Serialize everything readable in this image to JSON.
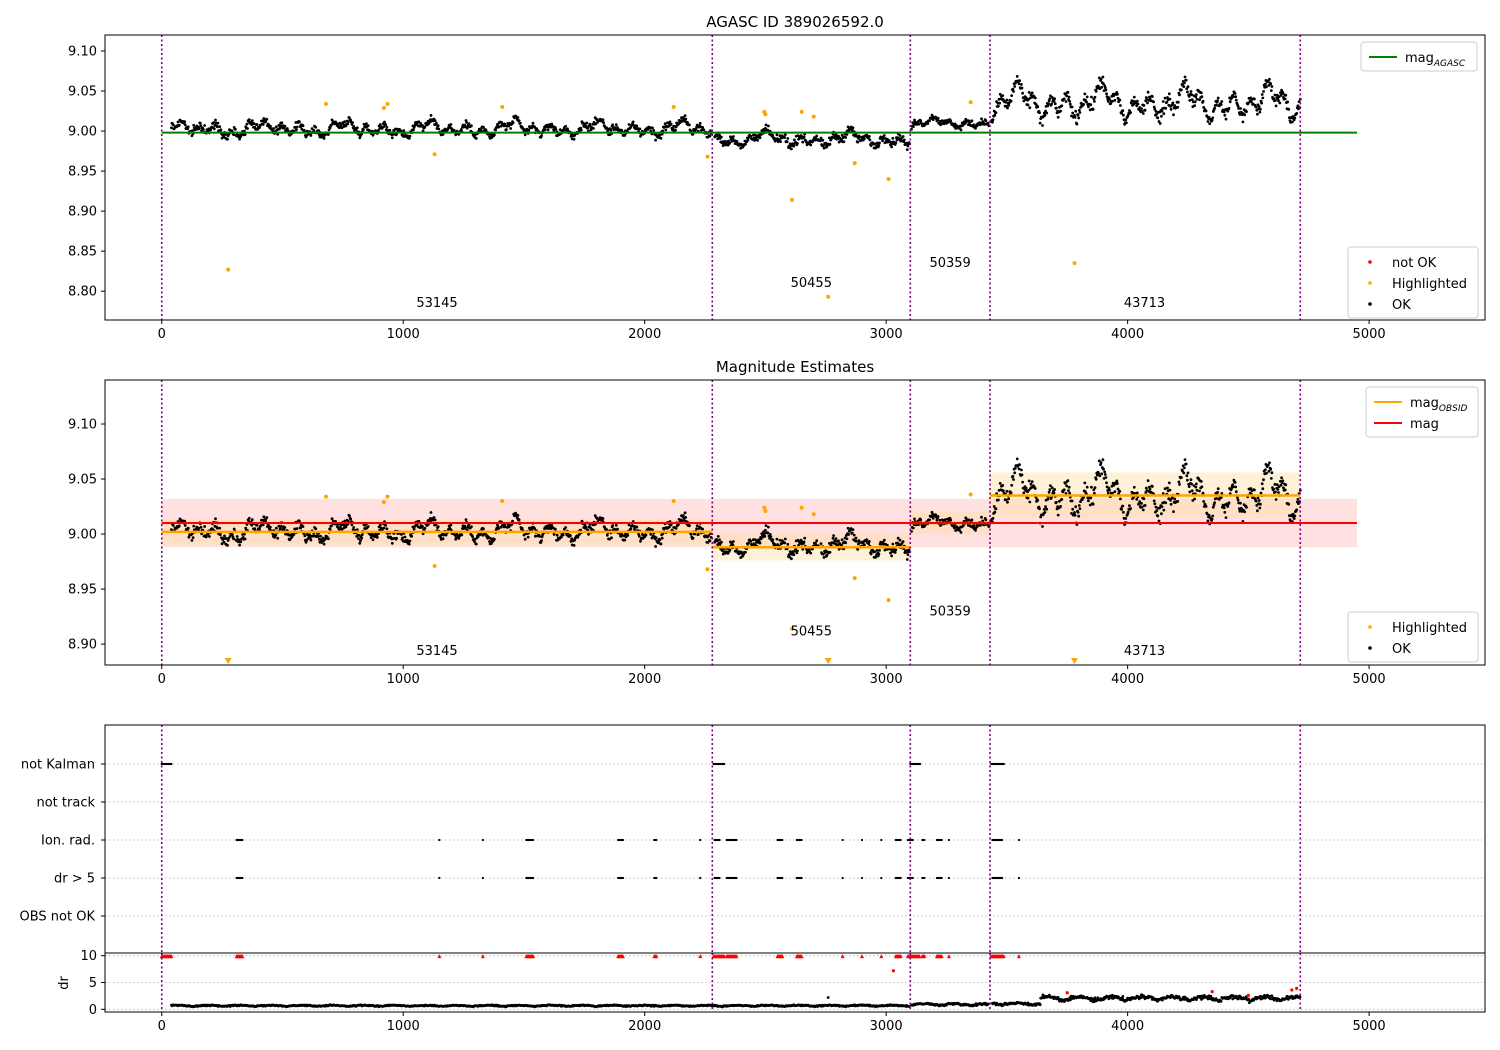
{
  "chart_data": [
    {
      "type": "scatter",
      "title": "AGASC ID 389026592.0",
      "xlim": [
        -235,
        5480
      ],
      "ylim": [
        8.764,
        9.12
      ],
      "xticks": [
        0,
        1000,
        2000,
        3000,
        4000,
        5000
      ],
      "yticks": [
        8.8,
        8.85,
        8.9,
        8.95,
        9.0,
        9.05,
        9.1
      ],
      "ytick_labels": [
        "8.80",
        "8.85",
        "8.90",
        "8.95",
        "9.00",
        "9.05",
        "9.10"
      ],
      "vlines": [
        0,
        2280,
        3100,
        3430,
        4715
      ],
      "obsid_labels": [
        {
          "text": "53145",
          "x": 1140,
          "y": 8.78
        },
        {
          "text": "50455",
          "x": 2690,
          "y": 8.805
        },
        {
          "text": "50359",
          "x": 3265,
          "y": 8.83
        },
        {
          "text": "43713",
          "x": 4070,
          "y": 8.78
        }
      ],
      "hlines": [
        {
          "name": "mag",
          "sub": "AGASC",
          "y": 8.998,
          "x0": 0,
          "x1": 4950,
          "color": "#008000"
        }
      ],
      "highlighted": [
        [
          275,
          8.827
        ],
        [
          680,
          9.034
        ],
        [
          920,
          9.029
        ],
        [
          935,
          9.034
        ],
        [
          1130,
          8.971
        ],
        [
          1410,
          9.03
        ],
        [
          2120,
          9.03
        ],
        [
          2260,
          8.968
        ],
        [
          2495,
          9.024
        ],
        [
          2500,
          9.021
        ],
        [
          2610,
          8.914
        ],
        [
          2650,
          9.024
        ],
        [
          2700,
          9.018
        ],
        [
          2760,
          8.793
        ],
        [
          2870,
          8.96
        ],
        [
          3010,
          8.94
        ],
        [
          3350,
          9.036
        ],
        [
          3780,
          8.835
        ]
      ],
      "segments": [
        {
          "x0": 40,
          "x1": 2275,
          "mean": 9.003,
          "amp": 0.008,
          "noise": 0.005
        },
        {
          "x0": 2290,
          "x1": 3095,
          "mean": 8.99,
          "amp": 0.008,
          "noise": 0.005
        },
        {
          "x0": 3105,
          "x1": 3425,
          "mean": 9.01,
          "amp": 0.005,
          "noise": 0.004
        },
        {
          "x0": 3435,
          "x1": 4715,
          "mean": 9.035,
          "amp": 0.018,
          "noise": 0.008
        }
      ],
      "legends": [
        {
          "position": "upper-right",
          "entries": [
            {
              "kind": "line",
              "label": "mag",
              "sub": "AGASC",
              "color": "#008000"
            }
          ]
        },
        {
          "position": "lower-right",
          "entries": [
            {
              "kind": "dot",
              "label": "not OK",
              "color": "#ff0000"
            },
            {
              "kind": "dot",
              "label": "Highlighted",
              "color": "#ffa500"
            },
            {
              "kind": "dot",
              "label": "OK",
              "color": "#000000"
            }
          ]
        }
      ]
    },
    {
      "type": "scatter",
      "title": "Magnitude Estimates",
      "xlim": [
        -235,
        5480
      ],
      "ylim": [
        8.881,
        9.14
      ],
      "xticks": [
        0,
        1000,
        2000,
        3000,
        4000,
        5000
      ],
      "yticks": [
        8.9,
        8.95,
        9.0,
        9.05,
        9.1
      ],
      "ytick_labels": [
        "8.90",
        "8.95",
        "9.00",
        "9.05",
        "9.10"
      ],
      "vlines": [
        0,
        2280,
        3100,
        3430,
        4715
      ],
      "obsid_labels": [
        {
          "text": "53145",
          "x": 1140,
          "y": 8.89
        },
        {
          "text": "50455",
          "x": 2690,
          "y": 8.908
        },
        {
          "text": "50359",
          "x": 3265,
          "y": 8.926
        },
        {
          "text": "43713",
          "x": 4070,
          "y": 8.89
        }
      ],
      "mag": {
        "y": 9.01,
        "band": [
          8.988,
          9.032
        ],
        "x0": 0,
        "x1": 4950,
        "color": "#ff0000",
        "band_color": "#ffd9d9"
      },
      "obsid_mags": [
        {
          "x0": 0,
          "x1": 2280,
          "y": 9.002,
          "band": [
            8.99,
            9.013
          ]
        },
        {
          "x0": 2280,
          "x1": 3100,
          "y": 8.988,
          "band": [
            8.976,
            9.0
          ]
        },
        {
          "x0": 3100,
          "x1": 3430,
          "y": 9.01,
          "band": [
            9.0,
            9.02
          ]
        },
        {
          "x0": 3430,
          "x1": 4715,
          "y": 9.035,
          "band": [
            9.015,
            9.056
          ]
        }
      ],
      "highlighted": [
        [
          680,
          9.034
        ],
        [
          920,
          9.029
        ],
        [
          935,
          9.034
        ],
        [
          1130,
          8.971
        ],
        [
          1410,
          9.03
        ],
        [
          2120,
          9.03
        ],
        [
          2260,
          8.968
        ],
        [
          2495,
          9.024
        ],
        [
          2500,
          9.021
        ],
        [
          2610,
          8.914
        ],
        [
          2650,
          9.024
        ],
        [
          2700,
          9.018
        ],
        [
          2870,
          8.96
        ],
        [
          3010,
          8.94
        ],
        [
          3350,
          9.036
        ]
      ],
      "offscale_markers": [
        275,
        2760,
        3780
      ],
      "segments": [
        {
          "x0": 40,
          "x1": 2275,
          "mean": 9.003,
          "amp": 0.008,
          "noise": 0.005
        },
        {
          "x0": 2290,
          "x1": 3095,
          "mean": 8.99,
          "amp": 0.008,
          "noise": 0.005
        },
        {
          "x0": 3105,
          "x1": 3425,
          "mean": 9.01,
          "amp": 0.005,
          "noise": 0.004
        },
        {
          "x0": 3435,
          "x1": 4715,
          "mean": 9.035,
          "amp": 0.018,
          "noise": 0.008
        }
      ],
      "legends": [
        {
          "position": "upper-right",
          "entries": [
            {
              "kind": "line",
              "label": "mag",
              "sub": "OBSID",
              "color": "#ffa500"
            },
            {
              "kind": "line",
              "label": "mag",
              "sub": "",
              "color": "#ff0000"
            }
          ]
        },
        {
          "position": "lower-right",
          "entries": [
            {
              "kind": "dot",
              "label": "Highlighted",
              "color": "#ffa500"
            },
            {
              "kind": "dot",
              "label": "OK",
              "color": "#000000"
            }
          ]
        }
      ]
    },
    {
      "type": "scatter",
      "title": "",
      "xlim": [
        -235,
        5480
      ],
      "flag_rows": [
        "not Kalman",
        "not track",
        "Ion. rad.",
        "dr > 5",
        "OBS not OK"
      ],
      "vlines": [
        0,
        2280,
        3100,
        3430,
        4715
      ],
      "flags": {
        "not Kalman": [
          [
            0,
            40
          ],
          [
            2285,
            2330
          ],
          [
            3100,
            3140
          ],
          [
            3435,
            3490
          ]
        ],
        "not track": [],
        "Ion. rad.": [
          [
            310,
            335
          ],
          [
            1150,
            1150
          ],
          [
            1330,
            1330
          ],
          [
            1510,
            1540
          ],
          [
            1890,
            1910
          ],
          [
            2040,
            2050
          ],
          [
            2230,
            2230
          ],
          [
            2290,
            2310
          ],
          [
            2340,
            2380
          ],
          [
            2550,
            2570
          ],
          [
            2630,
            2650
          ],
          [
            2820,
            2820
          ],
          [
            2900,
            2900
          ],
          [
            2980,
            2980
          ],
          [
            3040,
            3060
          ],
          [
            3090,
            3110
          ],
          [
            3150,
            3160
          ],
          [
            3210,
            3230
          ],
          [
            3260,
            3260
          ],
          [
            3440,
            3480
          ],
          [
            3550,
            3550
          ]
        ],
        "dr > 5": [
          [
            310,
            335
          ],
          [
            1150,
            1150
          ],
          [
            1330,
            1330
          ],
          [
            1510,
            1540
          ],
          [
            1890,
            1910
          ],
          [
            2040,
            2050
          ],
          [
            2230,
            2230
          ],
          [
            2290,
            2310
          ],
          [
            2340,
            2380
          ],
          [
            2550,
            2570
          ],
          [
            2630,
            2650
          ],
          [
            2820,
            2820
          ],
          [
            2900,
            2900
          ],
          [
            2980,
            2980
          ],
          [
            3040,
            3060
          ],
          [
            3090,
            3110
          ],
          [
            3150,
            3160
          ],
          [
            3210,
            3230
          ],
          [
            3260,
            3260
          ],
          [
            3440,
            3480
          ],
          [
            3550,
            3550
          ]
        ],
        "OBS not OK": []
      }
    },
    {
      "type": "scatter",
      "title": "",
      "ylabel": "dr",
      "xlim": [
        -235,
        5480
      ],
      "ylim": [
        -0.5,
        10.5
      ],
      "xticks": [
        0,
        1000,
        2000,
        3000,
        4000,
        5000
      ],
      "yticks": [
        0,
        5,
        10
      ],
      "vlines": [
        0,
        2280,
        3100,
        3430,
        4715
      ],
      "dr_segments": [
        {
          "x0": 40,
          "x1": 3095,
          "mean": 0.55,
          "amp": 0.25
        },
        {
          "x0": 3105,
          "x1": 3425,
          "mean": 0.7,
          "amp": 0.45
        },
        {
          "x0": 3440,
          "x1": 3640,
          "mean": 0.8,
          "amp": 0.5
        },
        {
          "x0": 3640,
          "x1": 4715,
          "mean": 1.6,
          "amp": 0.9
        }
      ],
      "dr_capped": [
        [
          0,
          40
        ],
        [
          310,
          335
        ],
        [
          1150,
          1150
        ],
        [
          1330,
          1330
        ],
        [
          1510,
          1540
        ],
        [
          1890,
          1910
        ],
        [
          2040,
          2050
        ],
        [
          2230,
          2230
        ],
        [
          2285,
          2330
        ],
        [
          2340,
          2380
        ],
        [
          2550,
          2570
        ],
        [
          2630,
          2650
        ],
        [
          2820,
          2820
        ],
        [
          2900,
          2900
        ],
        [
          2980,
          2980
        ],
        [
          3040,
          3060
        ],
        [
          3090,
          3140
        ],
        [
          3150,
          3160
        ],
        [
          3210,
          3230
        ],
        [
          3260,
          3260
        ],
        [
          3435,
          3490
        ],
        [
          3550,
          3550
        ]
      ],
      "dr_red_points": [
        [
          3030,
          7.2
        ],
        [
          3750,
          3.1
        ],
        [
          4350,
          3.3
        ],
        [
          4500,
          2.6
        ],
        [
          4680,
          3.6
        ],
        [
          4700,
          3.9
        ]
      ],
      "dr_outliers": [
        [
          2760,
          2.2
        ],
        [
          3980,
          2.4
        ]
      ]
    }
  ]
}
